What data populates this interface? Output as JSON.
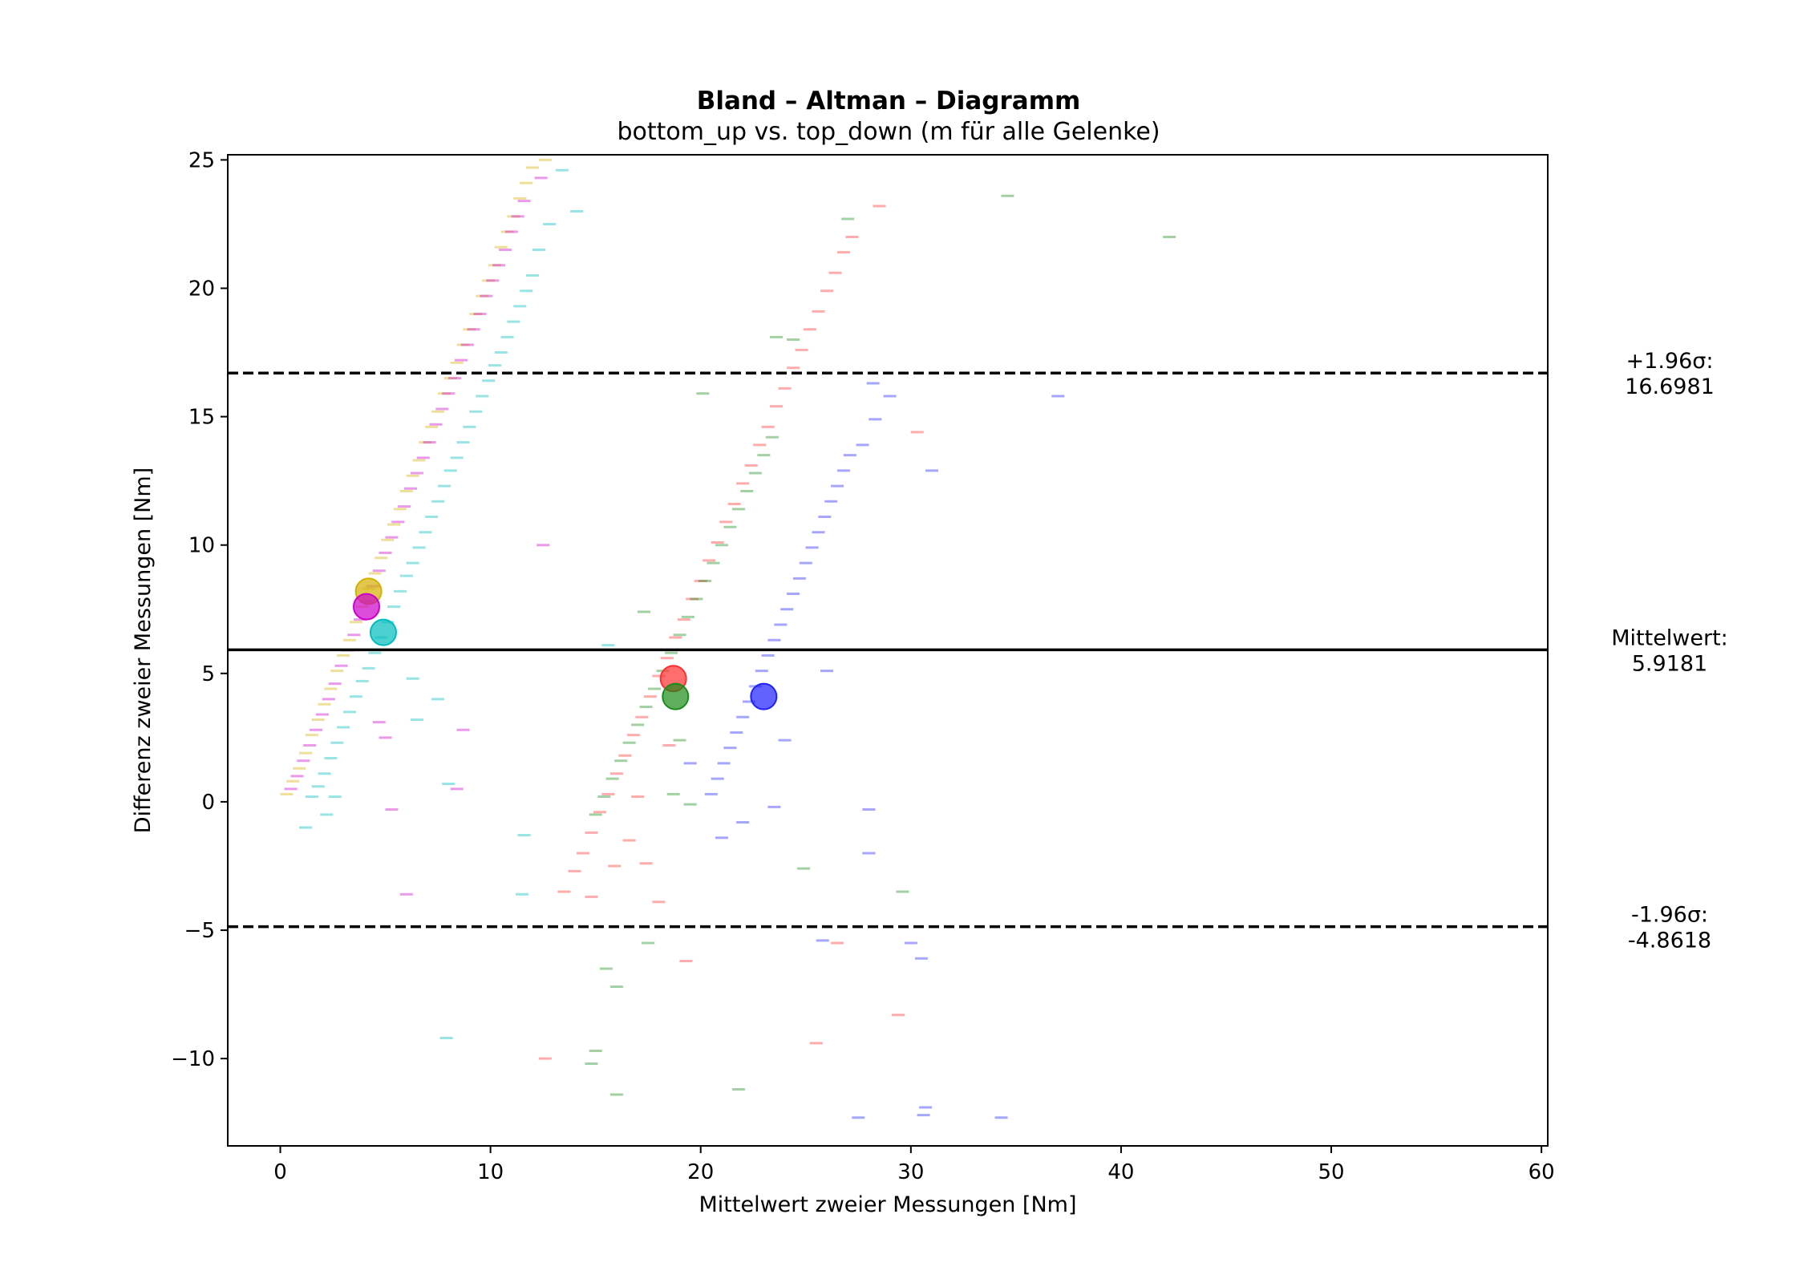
{
  "chart_data": {
    "type": "scatter",
    "title": "Bland – Altman – Diagramm",
    "subtitle": "bottom_up vs. top_down (m für alle Gelenke)",
    "xlabel": "Mittelwert zweier Messungen [Nm]",
    "ylabel": "Differenz zweier Messungen [Nm]",
    "xlim": [
      -2.5,
      60.3
    ],
    "ylim": [
      -13.4,
      25.2
    ],
    "xticks": [
      0,
      10,
      20,
      30,
      40,
      50,
      60
    ],
    "yticks": [
      -10,
      -5,
      0,
      5,
      10,
      15,
      20,
      25
    ],
    "xtick_labels": [
      "0",
      "10",
      "20",
      "30",
      "40",
      "50",
      "60"
    ],
    "ytick_labels": [
      "−10",
      "−5",
      "0",
      "5",
      "10",
      "15",
      "20",
      "25"
    ],
    "grid": false,
    "reference_lines": [
      {
        "label_line1": "+1.96σ:",
        "label_line2": "16.6981",
        "y": 16.6981,
        "style": "dashed"
      },
      {
        "label_line1": "Mittelwert:",
        "label_line2": "5.9181",
        "y": 5.9181,
        "style": "solid"
      },
      {
        "label_line1": "-1.96σ:",
        "label_line2": "-4.8618",
        "y": -4.8618,
        "style": "dashed"
      }
    ],
    "series": [
      {
        "color": "#d4b000",
        "mean_point": [
          4.2,
          8.2
        ],
        "points": [
          [
            0.3,
            0.3
          ],
          [
            0.6,
            0.8
          ],
          [
            0.9,
            1.3
          ],
          [
            1.2,
            1.9
          ],
          [
            1.5,
            2.6
          ],
          [
            1.8,
            3.2
          ],
          [
            2.1,
            3.8
          ],
          [
            2.4,
            4.4
          ],
          [
            2.7,
            5.1
          ],
          [
            3.0,
            5.7
          ],
          [
            3.3,
            6.3
          ],
          [
            3.6,
            7.0
          ],
          [
            3.9,
            7.6
          ],
          [
            4.2,
            8.3
          ],
          [
            4.5,
            8.9
          ],
          [
            4.8,
            9.5
          ],
          [
            5.1,
            10.2
          ],
          [
            5.4,
            10.8
          ],
          [
            5.7,
            11.4
          ],
          [
            6.0,
            12.1
          ],
          [
            6.3,
            12.7
          ],
          [
            6.6,
            13.3
          ],
          [
            6.9,
            14.0
          ],
          [
            7.2,
            14.6
          ],
          [
            7.5,
            15.2
          ],
          [
            7.8,
            15.9
          ],
          [
            8.1,
            16.5
          ],
          [
            8.4,
            17.1
          ],
          [
            8.7,
            17.8
          ],
          [
            9.0,
            18.4
          ],
          [
            9.3,
            19.0
          ],
          [
            9.6,
            19.7
          ],
          [
            9.9,
            20.3
          ],
          [
            10.2,
            20.9
          ],
          [
            10.5,
            21.6
          ],
          [
            10.8,
            22.2
          ],
          [
            11.1,
            22.8
          ],
          [
            11.4,
            23.5
          ],
          [
            11.7,
            24.1
          ],
          [
            12.0,
            24.7
          ],
          [
            12.6,
            25.0
          ]
        ]
      },
      {
        "color": "#cc00cc",
        "mean_point": [
          4.1,
          7.6
        ],
        "points": [
          [
            0.5,
            0.5
          ],
          [
            0.8,
            1.0
          ],
          [
            1.1,
            1.6
          ],
          [
            1.4,
            2.2
          ],
          [
            1.7,
            2.8
          ],
          [
            2.0,
            3.4
          ],
          [
            2.3,
            4.0
          ],
          [
            2.6,
            4.6
          ],
          [
            2.9,
            5.3
          ],
          [
            3.2,
            5.9
          ],
          [
            3.5,
            6.5
          ],
          [
            3.8,
            7.1
          ],
          [
            4.1,
            7.8
          ],
          [
            4.4,
            8.4
          ],
          [
            4.7,
            9.0
          ],
          [
            5.0,
            9.7
          ],
          [
            5.3,
            10.3
          ],
          [
            5.6,
            10.9
          ],
          [
            5.9,
            11.5
          ],
          [
            6.2,
            12.2
          ],
          [
            6.5,
            12.8
          ],
          [
            6.8,
            13.4
          ],
          [
            7.1,
            14.0
          ],
          [
            7.4,
            14.7
          ],
          [
            7.7,
            15.3
          ],
          [
            8.0,
            15.9
          ],
          [
            8.3,
            16.5
          ],
          [
            8.6,
            17.2
          ],
          [
            8.9,
            17.8
          ],
          [
            9.2,
            18.4
          ],
          [
            9.5,
            19.0
          ],
          [
            9.8,
            19.7
          ],
          [
            10.1,
            20.3
          ],
          [
            10.4,
            20.9
          ],
          [
            10.7,
            21.5
          ],
          [
            11.0,
            22.2
          ],
          [
            11.3,
            22.8
          ],
          [
            11.6,
            23.4
          ],
          [
            12.4,
            24.3
          ],
          [
            4.7,
            3.1
          ],
          [
            5.0,
            2.5
          ],
          [
            8.7,
            2.8
          ],
          [
            8.4,
            0.5
          ],
          [
            5.3,
            -0.3
          ],
          [
            6.0,
            -3.6
          ],
          [
            12.5,
            10.0
          ]
        ]
      },
      {
        "color": "#00bcbc",
        "mean_point": [
          4.9,
          6.6
        ],
        "points": [
          [
            1.5,
            0.2
          ],
          [
            1.8,
            0.6
          ],
          [
            2.1,
            1.1
          ],
          [
            2.4,
            1.7
          ],
          [
            2.7,
            2.3
          ],
          [
            3.0,
            2.9
          ],
          [
            3.3,
            3.5
          ],
          [
            3.6,
            4.1
          ],
          [
            3.9,
            4.7
          ],
          [
            4.2,
            5.2
          ],
          [
            4.5,
            5.8
          ],
          [
            4.8,
            6.4
          ],
          [
            5.1,
            7.0
          ],
          [
            5.4,
            7.6
          ],
          [
            5.7,
            8.2
          ],
          [
            6.0,
            8.8
          ],
          [
            6.3,
            9.3
          ],
          [
            6.6,
            9.9
          ],
          [
            6.9,
            10.5
          ],
          [
            7.2,
            11.1
          ],
          [
            7.5,
            11.7
          ],
          [
            7.8,
            12.3
          ],
          [
            8.1,
            12.9
          ],
          [
            8.4,
            13.4
          ],
          [
            8.7,
            14.0
          ],
          [
            9.0,
            14.6
          ],
          [
            9.3,
            15.2
          ],
          [
            9.6,
            15.8
          ],
          [
            9.9,
            16.4
          ],
          [
            10.2,
            17.0
          ],
          [
            10.5,
            17.5
          ],
          [
            10.8,
            18.1
          ],
          [
            11.1,
            18.7
          ],
          [
            11.4,
            19.3
          ],
          [
            11.7,
            19.9
          ],
          [
            12.0,
            20.5
          ],
          [
            12.3,
            21.5
          ],
          [
            12.8,
            22.5
          ],
          [
            14.1,
            23.0
          ],
          [
            13.4,
            24.6
          ],
          [
            1.2,
            -1.0
          ],
          [
            2.2,
            -0.5
          ],
          [
            2.6,
            0.2
          ],
          [
            6.3,
            4.8
          ],
          [
            7.5,
            4.0
          ],
          [
            6.5,
            3.2
          ],
          [
            11.6,
            -1.3
          ],
          [
            11.5,
            -3.6
          ],
          [
            7.9,
            -9.2
          ],
          [
            15.6,
            6.1
          ],
          [
            8.0,
            0.7
          ]
        ]
      },
      {
        "color": "#ff3030",
        "mean_point": [
          18.7,
          4.8
        ],
        "points": [
          [
            13.5,
            -3.5
          ],
          [
            14.0,
            -2.7
          ],
          [
            14.4,
            -2.0
          ],
          [
            14.8,
            -1.2
          ],
          [
            15.2,
            -0.4
          ],
          [
            15.6,
            0.3
          ],
          [
            16.0,
            1.1
          ],
          [
            16.4,
            1.8
          ],
          [
            16.8,
            2.6
          ],
          [
            17.2,
            3.3
          ],
          [
            17.6,
            4.1
          ],
          [
            18.0,
            4.9
          ],
          [
            18.4,
            5.6
          ],
          [
            18.8,
            6.4
          ],
          [
            19.2,
            7.1
          ],
          [
            19.6,
            7.9
          ],
          [
            20.0,
            8.6
          ],
          [
            20.4,
            9.4
          ],
          [
            20.8,
            10.1
          ],
          [
            21.2,
            10.9
          ],
          [
            21.6,
            11.6
          ],
          [
            22.0,
            12.4
          ],
          [
            22.4,
            13.1
          ],
          [
            22.8,
            13.9
          ],
          [
            23.2,
            14.6
          ],
          [
            23.6,
            15.4
          ],
          [
            24.0,
            16.1
          ],
          [
            24.4,
            16.9
          ],
          [
            24.8,
            17.6
          ],
          [
            25.2,
            18.4
          ],
          [
            25.6,
            19.1
          ],
          [
            26.0,
            19.9
          ],
          [
            26.4,
            20.6
          ],
          [
            26.8,
            21.4
          ],
          [
            27.2,
            22.0
          ],
          [
            28.5,
            23.2
          ],
          [
            30.3,
            14.4
          ],
          [
            14.8,
            -3.7
          ],
          [
            15.9,
            -2.5
          ],
          [
            17.4,
            -2.4
          ],
          [
            16.6,
            -1.5
          ],
          [
            18.0,
            -3.9
          ],
          [
            19.3,
            -6.2
          ],
          [
            12.6,
            -10.0
          ],
          [
            25.5,
            -9.4
          ],
          [
            29.4,
            -8.3
          ],
          [
            26.5,
            -5.5
          ],
          [
            17.0,
            0.2
          ],
          [
            18.5,
            2.2
          ]
        ]
      },
      {
        "color": "#1a8c1a",
        "mean_point": [
          18.8,
          4.1
        ],
        "points": [
          [
            15.0,
            -0.5
          ],
          [
            15.4,
            0.2
          ],
          [
            15.8,
            0.9
          ],
          [
            16.2,
            1.6
          ],
          [
            16.6,
            2.3
          ],
          [
            17.0,
            3.0
          ],
          [
            17.4,
            3.7
          ],
          [
            17.8,
            4.4
          ],
          [
            18.2,
            5.1
          ],
          [
            18.6,
            5.8
          ],
          [
            19.0,
            6.5
          ],
          [
            19.4,
            7.2
          ],
          [
            19.8,
            7.9
          ],
          [
            20.2,
            8.6
          ],
          [
            20.6,
            9.3
          ],
          [
            21.0,
            10.0
          ],
          [
            21.4,
            10.7
          ],
          [
            21.8,
            11.4
          ],
          [
            22.2,
            12.1
          ],
          [
            22.6,
            12.8
          ],
          [
            23.0,
            13.5
          ],
          [
            23.4,
            14.2
          ],
          [
            24.4,
            18.0
          ],
          [
            23.6,
            18.1
          ],
          [
            20.1,
            15.9
          ],
          [
            18.7,
            0.3
          ],
          [
            19.5,
            -0.1
          ],
          [
            17.5,
            -5.5
          ],
          [
            16.0,
            -7.2
          ],
          [
            15.5,
            -6.5
          ],
          [
            15.0,
            -9.7
          ],
          [
            14.8,
            -10.2
          ],
          [
            16.0,
            -11.4
          ],
          [
            21.8,
            -11.2
          ],
          [
            24.9,
            -2.6
          ],
          [
            29.6,
            -3.5
          ],
          [
            34.6,
            23.6
          ],
          [
            42.3,
            22.0
          ],
          [
            27.0,
            22.7
          ],
          [
            17.3,
            7.4
          ],
          [
            19.0,
            2.4
          ]
        ]
      },
      {
        "color": "#2020ff",
        "mean_point": [
          23.0,
          4.1
        ],
        "points": [
          [
            20.5,
            0.3
          ],
          [
            20.8,
            0.9
          ],
          [
            21.1,
            1.5
          ],
          [
            21.4,
            2.1
          ],
          [
            21.7,
            2.7
          ],
          [
            22.0,
            3.3
          ],
          [
            22.3,
            3.9
          ],
          [
            22.6,
            4.5
          ],
          [
            22.9,
            5.1
          ],
          [
            23.2,
            5.7
          ],
          [
            23.5,
            6.3
          ],
          [
            23.8,
            6.9
          ],
          [
            24.1,
            7.5
          ],
          [
            24.4,
            8.1
          ],
          [
            24.7,
            8.7
          ],
          [
            25.0,
            9.3
          ],
          [
            25.3,
            9.9
          ],
          [
            25.6,
            10.5
          ],
          [
            25.9,
            11.1
          ],
          [
            26.2,
            11.7
          ],
          [
            26.5,
            12.3
          ],
          [
            26.8,
            12.9
          ],
          [
            27.1,
            13.5
          ],
          [
            27.7,
            13.9
          ],
          [
            28.2,
            16.3
          ],
          [
            29.0,
            15.8
          ],
          [
            28.3,
            14.9
          ],
          [
            31.0,
            12.9
          ],
          [
            37.0,
            15.8
          ],
          [
            26.0,
            5.1
          ],
          [
            24.0,
            2.4
          ],
          [
            23.5,
            -0.2
          ],
          [
            21.0,
            -1.4
          ],
          [
            22.0,
            -0.8
          ],
          [
            28.0,
            -0.3
          ],
          [
            28.0,
            -2.0
          ],
          [
            30.0,
            -5.5
          ],
          [
            30.5,
            -6.1
          ],
          [
            27.5,
            -12.3
          ],
          [
            30.6,
            -12.2
          ],
          [
            30.7,
            -11.9
          ],
          [
            34.3,
            -12.3
          ],
          [
            25.8,
            -5.4
          ],
          [
            19.5,
            1.5
          ]
        ]
      }
    ]
  }
}
